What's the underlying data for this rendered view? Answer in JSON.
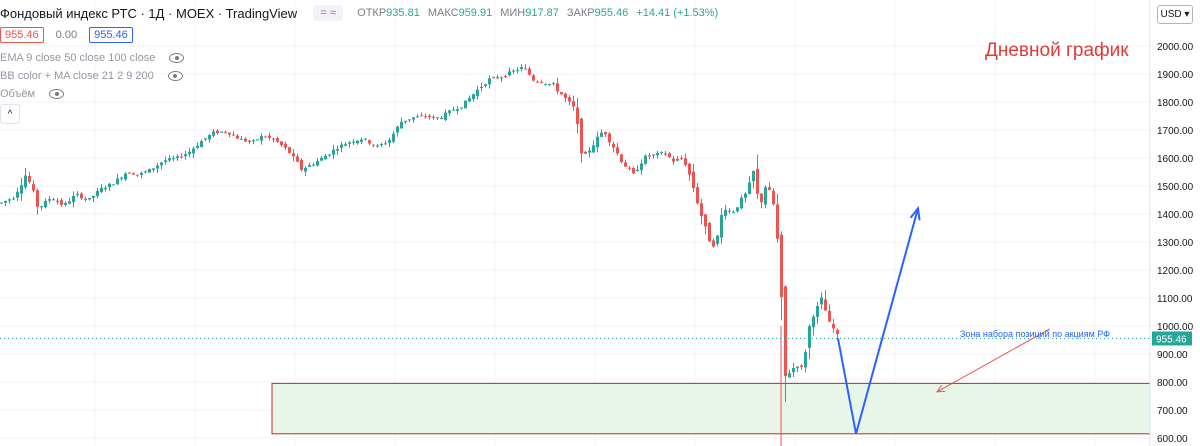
{
  "header": {
    "title": "Фондовый индекс РТС · 1Д · MOEX · TradingView",
    "tag_icon": "wave-approx-icon",
    "ohlc": {
      "open_label": "ОТКР",
      "open": "935.81",
      "high_label": "МАКС",
      "high": "959.91",
      "low_label": "МИН",
      "low": "917.87",
      "close_label": "ЗАКР",
      "close": "955.46",
      "change": "+14.41 (+1.53%)"
    },
    "bid": "955.46",
    "spread": "0.00",
    "ask": "955.46",
    "collapse_glyph": "^"
  },
  "indicators": [
    {
      "label": "EMA 9 close 50 close 100 close",
      "icon": "eye-icon"
    },
    {
      "label": "BB color + MA close 21 2 9 200",
      "icon": "eye-icon"
    },
    {
      "label": "Объём",
      "icon": "eye-icon"
    }
  ],
  "toolbar": {
    "currency": "USD"
  },
  "annotations": {
    "daily_chart": "Дневной график",
    "zone_text": "Зона набора позиций по акциям РФ"
  },
  "colors": {
    "up": "#26a69a",
    "down": "#ef5350",
    "arrow": "#2962ff",
    "zone_fill": "#e8f5e9",
    "zone_border": "#c62828",
    "annotation_red": "#e53935",
    "last_price_bg": "#26a69a"
  },
  "chart_data": {
    "type": "candlestick",
    "title": "",
    "xlabel": "",
    "ylabel": "",
    "ylim": [
      600,
      2050
    ],
    "y_ticks": [
      "2000.00",
      "1900.00",
      "1800.00",
      "1700.00",
      "1600.00",
      "1500.00",
      "1400.00",
      "1300.00",
      "1200.00",
      "1100.00",
      "1000.00",
      "900.00",
      "800.00",
      "700.00",
      "600.00"
    ],
    "last_price": 955.46,
    "last_price_label": "955.46",
    "zone": {
      "low": 615,
      "high": 795
    },
    "path_points": [
      [
        0,
        1440
      ],
      [
        12,
        1460
      ],
      [
        25,
        1545
      ],
      [
        37,
        1420
      ],
      [
        50,
        1460
      ],
      [
        62,
        1430
      ],
      [
        75,
        1470
      ],
      [
        87,
        1450
      ],
      [
        100,
        1490
      ],
      [
        112,
        1510
      ],
      [
        125,
        1550
      ],
      [
        137,
        1540
      ],
      [
        150,
        1560
      ],
      [
        162,
        1590
      ],
      [
        175,
        1600
      ],
      [
        187,
        1620
      ],
      [
        200,
        1660
      ],
      [
        212,
        1690
      ],
      [
        225,
        1695
      ],
      [
        237,
        1670
      ],
      [
        250,
        1655
      ],
      [
        262,
        1680
      ],
      [
        275,
        1660
      ],
      [
        287,
        1625
      ],
      [
        300,
        1560
      ],
      [
        312,
        1580
      ],
      [
        325,
        1610
      ],
      [
        337,
        1640
      ],
      [
        350,
        1660
      ],
      [
        362,
        1670
      ],
      [
        375,
        1640
      ],
      [
        387,
        1660
      ],
      [
        400,
        1730
      ],
      [
        412,
        1745
      ],
      [
        425,
        1750
      ],
      [
        437,
        1740
      ],
      [
        450,
        1770
      ],
      [
        462,
        1790
      ],
      [
        475,
        1840
      ],
      [
        487,
        1880
      ],
      [
        500,
        1890
      ],
      [
        512,
        1910
      ],
      [
        522,
        1925
      ],
      [
        532,
        1880
      ],
      [
        542,
        1870
      ],
      [
        552,
        1860
      ],
      [
        562,
        1820
      ],
      [
        572,
        1780
      ],
      [
        582,
        1600
      ],
      [
        592,
        1650
      ],
      [
        602,
        1700
      ],
      [
        612,
        1640
      ],
      [
        622,
        1580
      ],
      [
        632,
        1540
      ],
      [
        642,
        1600
      ],
      [
        652,
        1610
      ],
      [
        662,
        1620
      ],
      [
        672,
        1590
      ],
      [
        682,
        1600
      ],
      [
        690,
        1520
      ],
      [
        698,
        1420
      ],
      [
        706,
        1320
      ],
      [
        714,
        1280
      ],
      [
        722,
        1430
      ],
      [
        730,
        1400
      ],
      [
        738,
        1440
      ],
      [
        746,
        1480
      ],
      [
        752,
        1550
      ],
      [
        758,
        1420
      ],
      [
        764,
        1500
      ],
      [
        770,
        1470
      ],
      [
        775,
        1380
      ],
      [
        778,
        1150
      ],
      [
        780,
        1060
      ],
      [
        782,
        750
      ],
      [
        786,
        870
      ],
      [
        790,
        800
      ],
      [
        794,
        900
      ],
      [
        798,
        820
      ],
      [
        802,
        880
      ],
      [
        806,
        950
      ],
      [
        810,
        1040
      ],
      [
        814,
        1050
      ],
      [
        818,
        1080
      ],
      [
        822,
        1110
      ],
      [
        826,
        1000
      ],
      [
        830,
        1010
      ],
      [
        834,
        970
      ],
      [
        838,
        955.46
      ]
    ],
    "projection": [
      [
        838,
        955.46
      ],
      [
        856,
        615
      ],
      [
        918,
        1420
      ]
    ],
    "zone_arrow": {
      "from": [
        1050,
        990
      ],
      "to": [
        937,
        765
      ]
    }
  }
}
